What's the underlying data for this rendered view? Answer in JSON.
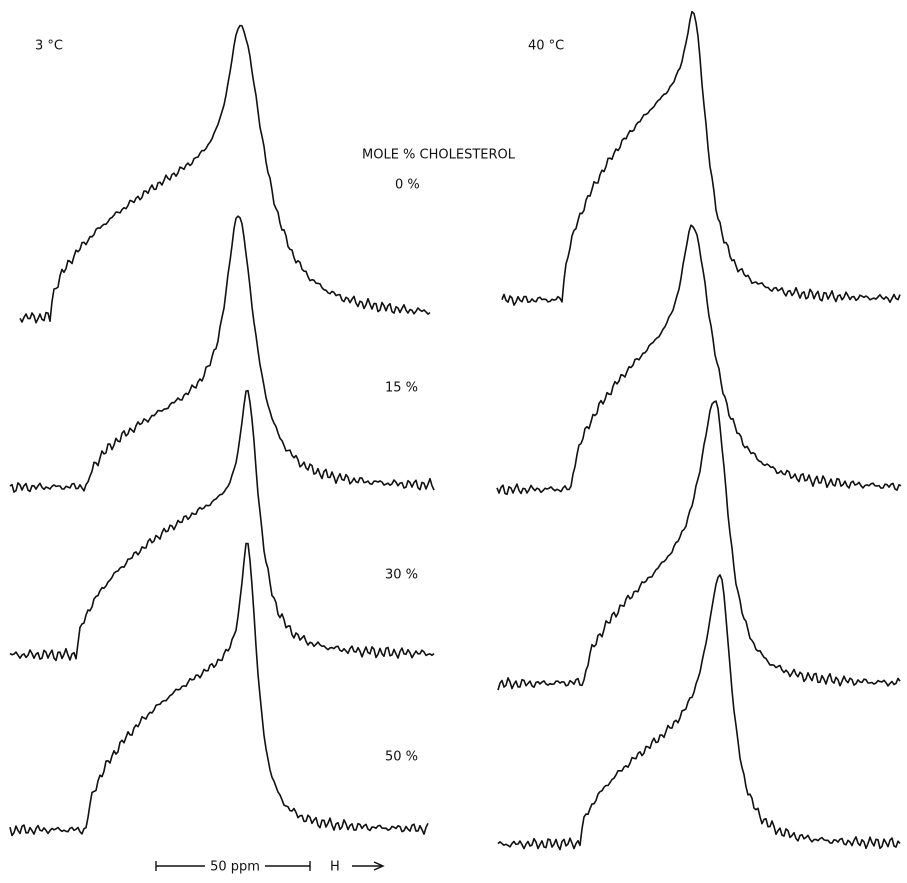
{
  "labels": {
    "left_temp": "3 °C",
    "right_temp": "40 °C",
    "heading": "MOLE % CHOLESTEROL",
    "rows": [
      "0 %",
      "15 %",
      "30 %",
      "50 %"
    ],
    "scale": "50 ppm",
    "field": "H"
  }
}
